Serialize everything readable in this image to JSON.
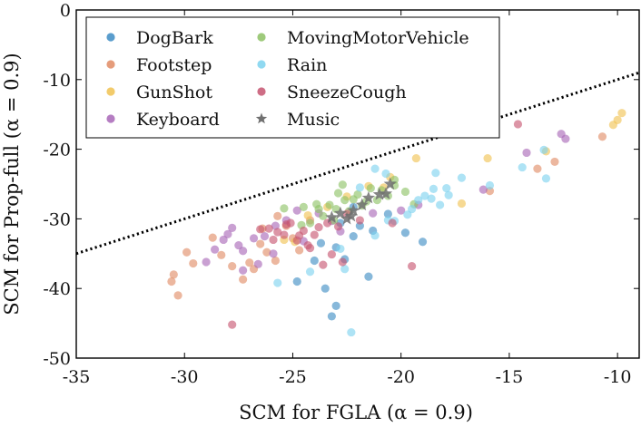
{
  "chart_data": {
    "type": "scatter",
    "xlabel": "SCM for FGLA (α = 0.9)",
    "ylabel": "SCM for Prop-full (α = 0.9)",
    "xlim": [
      -35,
      -9
    ],
    "ylim": [
      -50,
      0
    ],
    "xticks": [
      -35,
      -30,
      -25,
      -20,
      -15,
      -10
    ],
    "yticks": [
      0,
      -10,
      -20,
      -30,
      -40,
      -50
    ],
    "xtick_labels": [
      "-35",
      "-30",
      "-25",
      "-20",
      "-15",
      "-10"
    ],
    "ytick_labels": [
      "0",
      "-10",
      "-20",
      "-30",
      "-40",
      "-50"
    ],
    "reference_line": {
      "style": "dotted",
      "color": "#000000",
      "x": [
        -35,
        -9
      ],
      "y": [
        -35,
        -9
      ]
    },
    "legend": {
      "position": "top-left",
      "columns": 2
    },
    "series": [
      {
        "name": "DogBark",
        "marker": "circle",
        "color": "#3d8cc4",
        "points": [
          [
            -23.5,
            -40
          ],
          [
            -23,
            -42.5
          ],
          [
            -23.2,
            -44
          ],
          [
            -21.5,
            -38.3
          ],
          [
            -19.8,
            -32
          ],
          [
            -19,
            -33.3
          ],
          [
            -22.6,
            -35.8
          ],
          [
            -24,
            -36
          ],
          [
            -23.7,
            -33.5
          ],
          [
            -24.8,
            -39
          ],
          [
            -21.9,
            -31
          ],
          [
            -22.2,
            -28.3
          ],
          [
            -22.8,
            -30.6
          ],
          [
            -21.3,
            -31.7
          ],
          [
            -20.6,
            -29.3
          ],
          [
            -22.2,
            -32.5
          ],
          [
            -23,
            -34.1
          ]
        ]
      },
      {
        "name": "Footstep",
        "marker": "circle",
        "color": "#e08b64",
        "points": [
          [
            -30.5,
            -38
          ],
          [
            -30.3,
            -41
          ],
          [
            -30.6,
            -39
          ],
          [
            -29.9,
            -34.8
          ],
          [
            -29.6,
            -36.4
          ],
          [
            -28.7,
            -32.7
          ],
          [
            -28.3,
            -35.2
          ],
          [
            -27.8,
            -36.8
          ],
          [
            -27.3,
            -38.7
          ],
          [
            -27,
            -36.3
          ],
          [
            -26.5,
            -33.6
          ],
          [
            -26.2,
            -34.8
          ],
          [
            -25.7,
            -29.6
          ],
          [
            -25.3,
            -31
          ],
          [
            -25,
            -32.8
          ],
          [
            -24.7,
            -34.5
          ],
          [
            -26.8,
            -37.2
          ],
          [
            -25.8,
            -36
          ],
          [
            -10.7,
            -18.2
          ],
          [
            -13.7,
            -22.8
          ],
          [
            -12.9,
            -21.8
          ],
          [
            -15.9,
            -26
          ],
          [
            -24.2,
            -30.2
          ],
          [
            -26.4,
            -31.4
          ]
        ]
      },
      {
        "name": "GunShot",
        "marker": "circle",
        "color": "#f0c251",
        "points": [
          [
            -9.8,
            -14.8
          ],
          [
            -10,
            -15.8
          ],
          [
            -10.2,
            -16.5
          ],
          [
            -13.3,
            -20.3
          ],
          [
            -16,
            -21.3
          ],
          [
            -19.3,
            -21.3
          ],
          [
            -20.5,
            -24
          ],
          [
            -21.5,
            -25.3
          ],
          [
            -22.5,
            -26.8
          ],
          [
            -23.4,
            -28.3
          ],
          [
            -24.3,
            -29.5
          ],
          [
            -25.4,
            -33
          ],
          [
            -20.8,
            -25.5
          ],
          [
            -17.2,
            -27.8
          ],
          [
            -24.9,
            -33.3
          ]
        ]
      },
      {
        "name": "Keyboard",
        "marker": "circle",
        "color": "#a866b7",
        "points": [
          [
            -29,
            -36.2
          ],
          [
            -28.6,
            -34.4
          ],
          [
            -28.2,
            -33
          ],
          [
            -27.8,
            -31.3
          ],
          [
            -27.3,
            -34.6
          ],
          [
            -26.8,
            -32.8
          ],
          [
            -26.3,
            -32.5
          ],
          [
            -25.8,
            -31
          ],
          [
            -25.3,
            -30.2
          ],
          [
            -25.9,
            -35
          ],
          [
            -26.6,
            -36.5
          ],
          [
            -27.3,
            -37.4
          ],
          [
            -24.8,
            -28.8
          ],
          [
            -23.8,
            -29.2
          ],
          [
            -23.2,
            -30.3
          ],
          [
            -22.8,
            -31.8
          ],
          [
            -21.3,
            -29.2
          ],
          [
            -19.2,
            -28
          ],
          [
            -12.6,
            -17.8
          ],
          [
            -12.4,
            -18.5
          ],
          [
            -14.2,
            -20.5
          ],
          [
            -16.2,
            -25.8
          ],
          [
            -20,
            -28.8
          ],
          [
            -24.5,
            -33.2
          ],
          [
            -28,
            -32.2
          ],
          [
            -27.5,
            -33.8
          ]
        ]
      },
      {
        "name": "MovingMotorVehicle",
        "marker": "circle",
        "color": "#8dc164",
        "points": [
          [
            -23.8,
            -28.6
          ],
          [
            -23.3,
            -28
          ],
          [
            -22.6,
            -27.3
          ],
          [
            -22,
            -26.5
          ],
          [
            -21.4,
            -25.6
          ],
          [
            -20.9,
            -25.9
          ],
          [
            -20.3,
            -25.2
          ],
          [
            -21.6,
            -27.5
          ],
          [
            -22.2,
            -27.2
          ],
          [
            -23,
            -28.6
          ],
          [
            -23.6,
            -29.6
          ],
          [
            -24.2,
            -30.6
          ],
          [
            -24.6,
            -30.9
          ],
          [
            -23.1,
            -30.2
          ],
          [
            -22.4,
            -28.9
          ],
          [
            -21.1,
            -27.3
          ],
          [
            -20.6,
            -26.7
          ],
          [
            -19.8,
            -26.1
          ],
          [
            -22.9,
            -26.3
          ],
          [
            -22.7,
            -25.1
          ],
          [
            -20.3,
            -24.4
          ],
          [
            -23.9,
            -27.9
          ],
          [
            -24.5,
            -28.3
          ],
          [
            -21.8,
            -28.1
          ],
          [
            -25.4,
            -28.5
          ],
          [
            -19.4,
            -27.9
          ]
        ]
      },
      {
        "name": "Rain",
        "marker": "circle",
        "color": "#7dd2ef",
        "points": [
          [
            -22.3,
            -46.3
          ],
          [
            -25.7,
            -39.2
          ],
          [
            -24.2,
            -37.6
          ],
          [
            -22.6,
            -37.2
          ],
          [
            -22.8,
            -34.3
          ],
          [
            -21.2,
            -32.4
          ],
          [
            -20.3,
            -30.3
          ],
          [
            -19.5,
            -28.6
          ],
          [
            -18.6,
            -27.1
          ],
          [
            -17.8,
            -26.6
          ],
          [
            -17.2,
            -24.1
          ],
          [
            -17.9,
            -25.6
          ],
          [
            -18.4,
            -23.4
          ],
          [
            -18.9,
            -26.7
          ],
          [
            -19.2,
            -27.3
          ],
          [
            -19.7,
            -29.4
          ],
          [
            -20.6,
            -30.2
          ],
          [
            -13.3,
            -24.2
          ],
          [
            -14.4,
            -22.6
          ],
          [
            -13.4,
            -20.1
          ],
          [
            -15.9,
            -25.2
          ],
          [
            -18.5,
            -25.7
          ],
          [
            -18.2,
            -28
          ],
          [
            -20.7,
            -23.5
          ],
          [
            -21.2,
            -22.8
          ],
          [
            -21.9,
            -25.5
          ]
        ]
      },
      {
        "name": "SneezeCough",
        "marker": "circle",
        "color": "#c65470",
        "points": [
          [
            -27.8,
            -45.2
          ],
          [
            -22.7,
            -36.2
          ],
          [
            -23.6,
            -36.6
          ],
          [
            -24.2,
            -34.2
          ],
          [
            -24.8,
            -33.1
          ],
          [
            -25.4,
            -32.3
          ],
          [
            -26.1,
            -31.4
          ],
          [
            -25.7,
            -31.9
          ],
          [
            -25.1,
            -30.6
          ],
          [
            -24.5,
            -31.7
          ],
          [
            -24,
            -32.3
          ],
          [
            -23.4,
            -30.6
          ],
          [
            -22.9,
            -31.1
          ],
          [
            -22.5,
            -29.3
          ],
          [
            -21.9,
            -30.2
          ],
          [
            -19.5,
            -36.8
          ],
          [
            -24.3,
            -33.8
          ],
          [
            -24.7,
            -32.4
          ],
          [
            -23.8,
            -31.2
          ],
          [
            -25.9,
            -33
          ],
          [
            -14.6,
            -16.4
          ],
          [
            -20.4,
            -30.6
          ],
          [
            -23.2,
            -35.1
          ],
          [
            -25.3,
            -30.8
          ],
          [
            -26.5,
            -31.5
          ]
        ]
      },
      {
        "name": "Music",
        "marker": "star",
        "color": "#707070",
        "points": [
          [
            -20.5,
            -25
          ],
          [
            -21,
            -26.5
          ],
          [
            -20.7,
            -26.4
          ],
          [
            -21.8,
            -28
          ],
          [
            -22.2,
            -28.8
          ],
          [
            -22.8,
            -29.2
          ],
          [
            -23.2,
            -29.8
          ],
          [
            -22.5,
            -30
          ],
          [
            -21.5,
            -27
          ],
          [
            -22.3,
            -29.6
          ]
        ]
      }
    ]
  }
}
